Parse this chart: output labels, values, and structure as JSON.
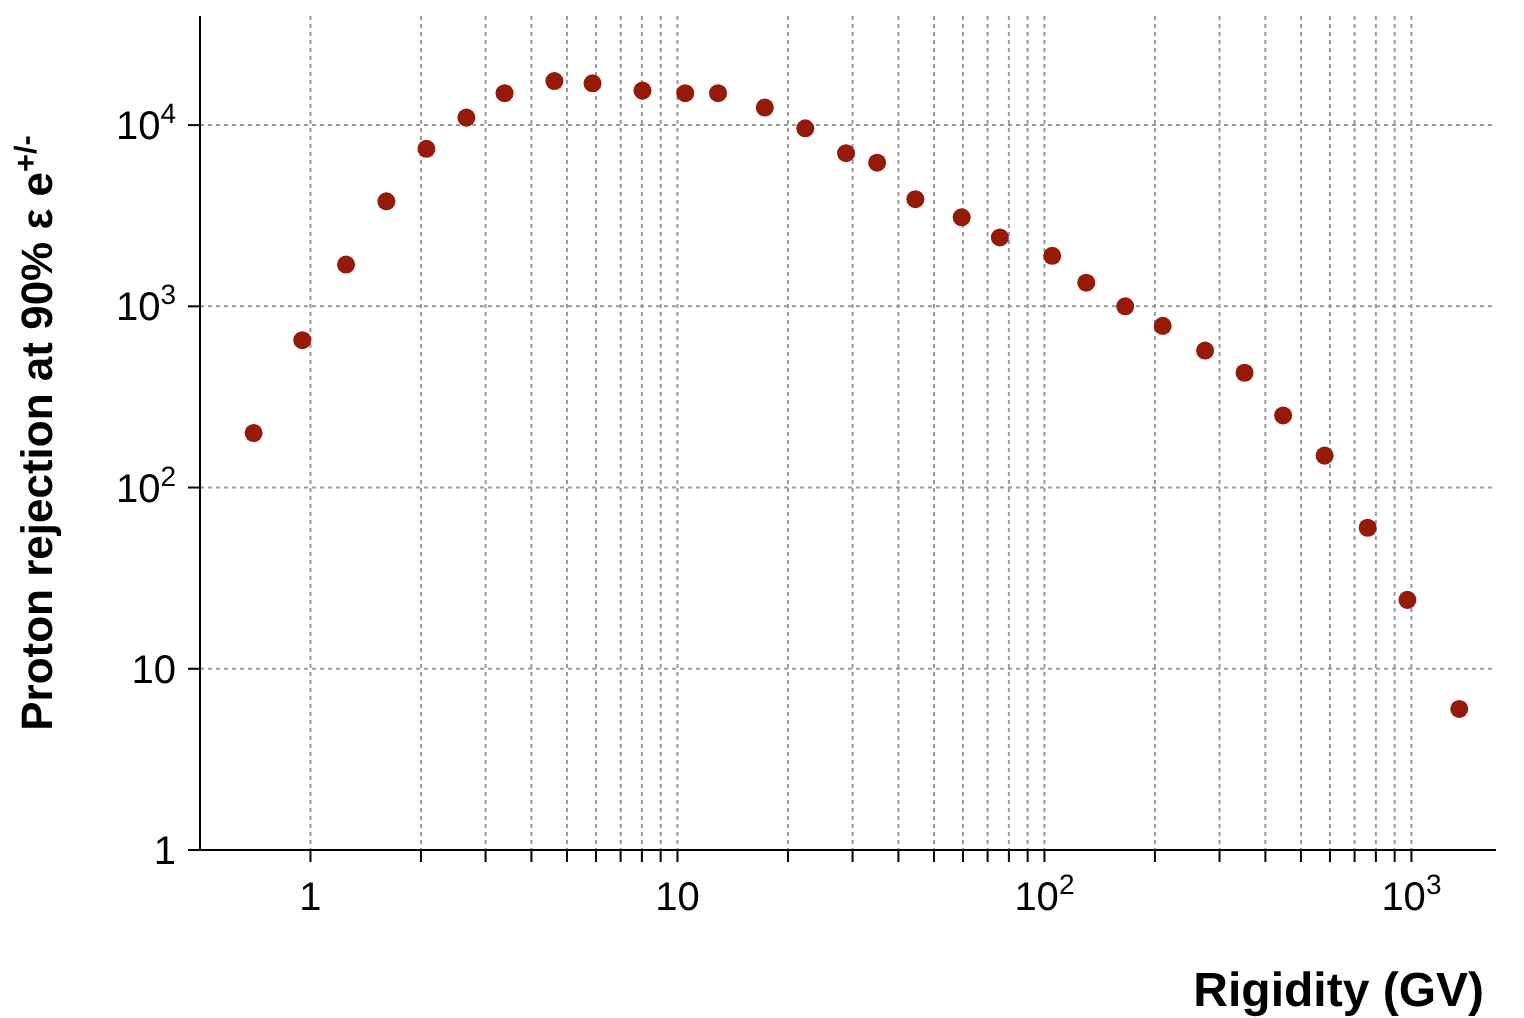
{
  "chart_data": {
    "type": "scatter",
    "xlabel": "Rigidity (GV)",
    "ylabel": "Proton rejection at 90% ε e$^{+/-}$",
    "x": [
      0.7,
      0.95,
      1.25,
      1.61,
      2.07,
      2.66,
      3.38,
      4.62,
      5.87,
      8.03,
      10.5,
      12.9,
      17.3,
      22.3,
      28.8,
      35,
      44.5,
      59.5,
      75.6,
      105,
      130,
      166,
      210,
      274,
      351,
      447,
      580,
      760,
      975,
      1350
    ],
    "series": [
      {
        "color": "#961a0a",
        "values": [
          200,
          650,
          1700,
          3800,
          7400,
          11000,
          15000,
          17500,
          17000,
          15500,
          15000,
          15000,
          12500,
          9600,
          7000,
          6200,
          3900,
          3100,
          2400,
          1900,
          1350,
          1000,
          780,
          570,
          430,
          250,
          150,
          60,
          24,
          6
        ]
      }
    ],
    "log": "xy",
    "xlim": [
      0.5,
      1700
    ],
    "ylim": [
      1,
      40000
    ],
    "xticks": [
      1,
      {
        "value": 2,
        "label": null
      },
      {
        "value": 3,
        "label": null
      },
      {
        "value": 4,
        "label": null
      },
      {
        "value": 5,
        "label": null
      },
      {
        "value": 6,
        "label": null
      },
      {
        "value": 7,
        "label": null
      },
      {
        "value": 8,
        "label": null
      },
      {
        "value": 9,
        "label": null
      },
      10,
      {
        "value": 20,
        "label": null
      },
      {
        "value": 30,
        "label": null
      },
      {
        "value": 40,
        "label": null
      },
      {
        "value": 50,
        "label": null
      },
      {
        "value": 60,
        "label": null
      },
      {
        "value": 70,
        "label": null
      },
      {
        "value": 80,
        "label": null
      },
      {
        "value": 90,
        "label": null
      },
      {
        "value": 100,
        "label": "10$^{2}$"
      },
      {
        "value": 200,
        "label": null
      },
      {
        "value": 300,
        "label": null
      },
      {
        "value": 400,
        "label": null
      },
      {
        "value": 500,
        "label": null
      },
      {
        "value": 600,
        "label": null
      },
      {
        "value": 700,
        "label": null
      },
      {
        "value": 800,
        "label": null
      },
      {
        "value": 900,
        "label": null
      },
      {
        "value": 1000,
        "label": "10$^{3}$"
      }
    ],
    "yticks": [
      1,
      10,
      {
        "value": 100,
        "label": "10$^{2}$"
      },
      {
        "value": 1000,
        "label": "10$^{3}$"
      },
      {
        "value": 10000,
        "label": "10$^{4}$"
      }
    ],
    "grid": true,
    "marker": "circle",
    "legend": false
  }
}
